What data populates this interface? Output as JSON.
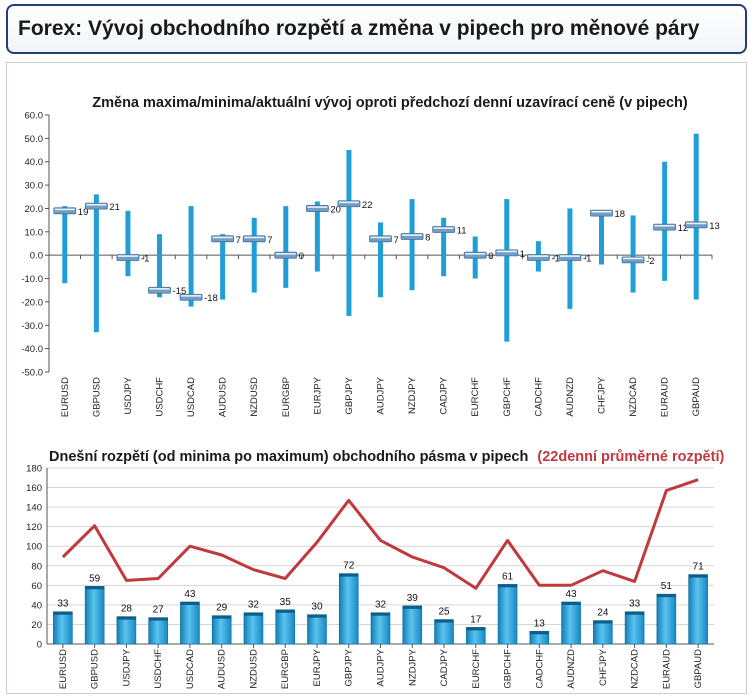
{
  "header": {
    "title": "Forex: Vývoj obchodního rozpětí a změna v pipech pro měnové páry"
  },
  "chart_data": [
    {
      "type": "range-bar",
      "title": "Změna maxima/minima/aktuální vývoj oproti předchozí denní uzavírací ceně (v pipech)",
      "ylim": [
        -50,
        60
      ],
      "yticks": [
        "60.0",
        "50.0",
        "40.0",
        "30.0",
        "20.0",
        "10.0",
        "0.0",
        "-10.0",
        "-20.0",
        "-30.0",
        "-40.0",
        "-50.0"
      ],
      "categories": [
        "EURUSD",
        "GBPUSD",
        "USDJPY",
        "USDCHF",
        "USDCAD",
        "AUDUSD",
        "NZDUSD",
        "EURGBP",
        "EURJPY",
        "GBPJPY",
        "AUDJPY",
        "NZDJPY",
        "CADJPY",
        "EURCHF",
        "GBPCHF",
        "CADCHF",
        "AUDNZD",
        "CHFJPY",
        "NZDCAD",
        "EURAUD",
        "GBPAUD"
      ],
      "high": [
        21,
        26,
        19,
        9,
        21,
        9,
        16,
        21,
        23,
        45,
        14,
        24,
        16,
        8,
        24,
        6,
        20,
        19,
        17,
        40,
        52
      ],
      "low": [
        -12,
        -33,
        -9,
        -18,
        -22,
        -19,
        -16,
        -14,
        -7,
        -26,
        -18,
        -15,
        -9,
        -10,
        -37,
        -7,
        -23,
        -4,
        -16,
        -11,
        -19
      ],
      "current": [
        19,
        21,
        -1,
        -15,
        -18,
        7,
        7,
        0,
        20,
        22,
        7,
        8,
        11,
        0,
        1,
        -1,
        -1,
        18,
        -2,
        12,
        13
      ],
      "current_labels": [
        "19",
        "21",
        "-1",
        "-15",
        "-18",
        "7",
        "7",
        "0",
        "20",
        "22",
        "7",
        "8",
        "11",
        "0",
        "1",
        "-1",
        "-1",
        "18",
        "-2",
        "12",
        "13"
      ],
      "colors": {
        "bar": "#1f9fd6",
        "marker": "#6f9fc9"
      }
    },
    {
      "type": "bar+line",
      "title": "Dnešní rozpětí (od minima po maximum) obchodního pásma v pipech",
      "title_highlight": "(22denní průměrné rozpětí)",
      "ylim": [
        0,
        180
      ],
      "yticks": [
        "180",
        "160",
        "140",
        "120",
        "100",
        "80",
        "60",
        "40",
        "20",
        "0"
      ],
      "categories": [
        "EURUSD",
        "GBPUSD",
        "USDJPY",
        "USDCHF",
        "USDCAD",
        "AUDUSD",
        "NZDUSD",
        "EURGBP",
        "EURJPY",
        "GBPJPY",
        "AUDJPY",
        "NZDJPY",
        "CADJPY",
        "EURCHF",
        "GBPCHF",
        "CADCHF",
        "AUDNZD",
        "CHFJPY",
        "NZDCAD",
        "EURAUD",
        "GBPAUD"
      ],
      "values": [
        33,
        59,
        28,
        27,
        43,
        29,
        32,
        35,
        30,
        72,
        32,
        39,
        25,
        17,
        61,
        13,
        43,
        24,
        33,
        51,
        71
      ],
      "value_labels": [
        "33",
        "59",
        "28",
        "27",
        "43",
        "29",
        "32",
        "35",
        "30",
        "72",
        "32",
        "39",
        "25",
        "17",
        "61",
        "13",
        "43",
        "24",
        "33",
        "51",
        "71"
      ],
      "avg_range": [
        89,
        121,
        65,
        67,
        100,
        91,
        76,
        67,
        104,
        147,
        106,
        89,
        78,
        57,
        106,
        60,
        60,
        75,
        64,
        157,
        168
      ],
      "colors": {
        "bar": "#2aa4db",
        "line": "#c0393f",
        "highlight": "#c0393f"
      }
    }
  ]
}
